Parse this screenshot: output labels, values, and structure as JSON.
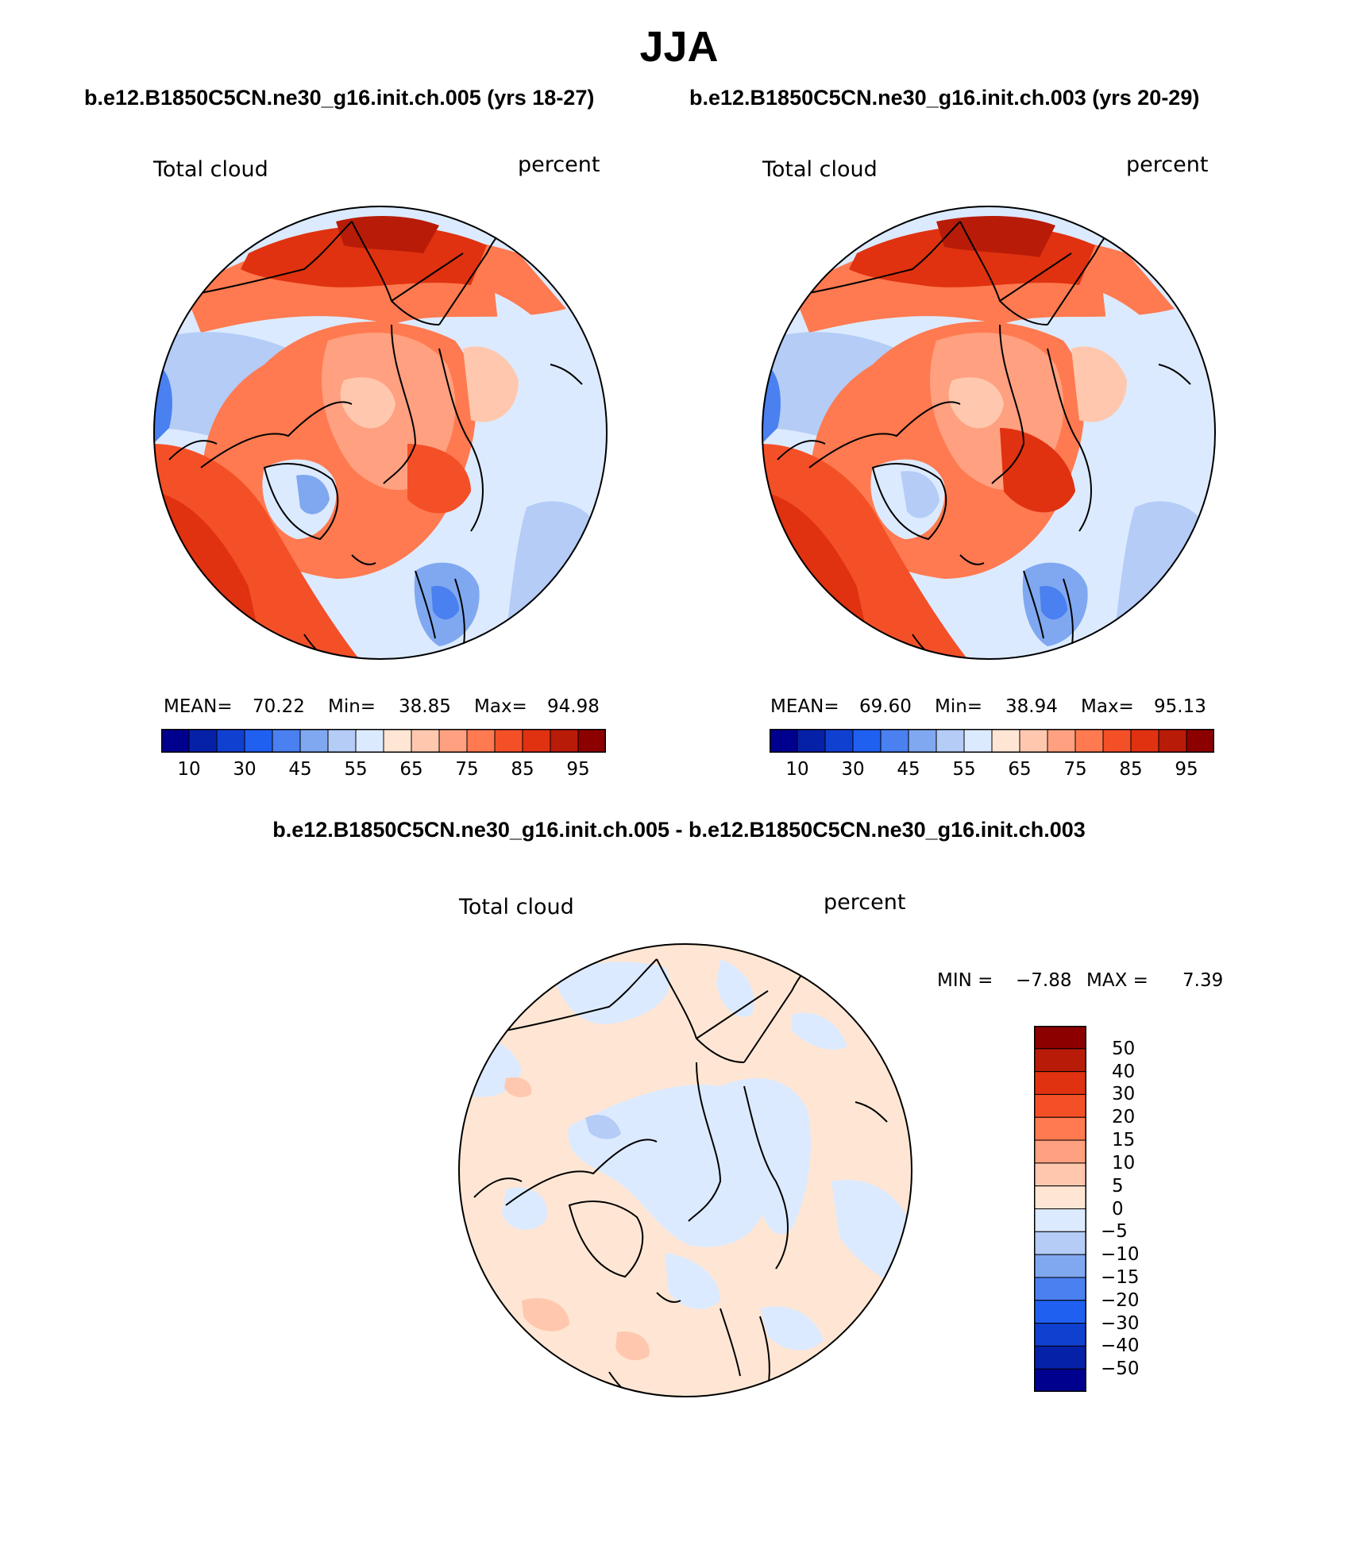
{
  "title": "JJA",
  "case_a_title": "b.e12.B1850C5CN.ne30_g16.init.ch.005 (yrs 18-27)",
  "case_b_title": "b.e12.B1850C5CN.ne30_g16.init.ch.003 (yrs 20-29)",
  "diff_title": "b.e12.B1850C5CN.ne30_g16.init.ch.005 - b.e12.B1850C5CN.ne30_g16.init.ch.003",
  "panels": [
    {
      "variable": "Total cloud",
      "units": "percent",
      "stats": {
        "mean_label": "MEAN=",
        "mean": "70.22",
        "min_label": "Min=",
        "min": "38.85",
        "max_label": "Max=",
        "max": "94.98"
      }
    },
    {
      "variable": "Total cloud",
      "units": "percent",
      "stats": {
        "mean_label": "MEAN=",
        "mean": "69.60",
        "min_label": "Min=",
        "min": "38.94",
        "max_label": "Max=",
        "max": "95.13"
      }
    },
    {
      "variable": "Total cloud",
      "units": "percent",
      "stats": {
        "min_label": "MIN =",
        "min": "−7.88",
        "max_label": "MAX =",
        "max": "7.39"
      }
    }
  ],
  "abs_colorbar": {
    "colors": [
      "#00008f",
      "#0521a8",
      "#1040d0",
      "#2060f0",
      "#4a80f0",
      "#80a8f0",
      "#b4ccf6",
      "#dceaff",
      "#ffe6d4",
      "#ffc8ae",
      "#ffa080",
      "#ff7a50",
      "#f45028",
      "#e03210",
      "#b81c08",
      "#8c0000"
    ],
    "tick_labels": [
      "10",
      "30",
      "45",
      "55",
      "65",
      "75",
      "85",
      "95"
    ]
  },
  "diff_colorbar": {
    "colors": [
      "#8c0000",
      "#b81c08",
      "#e03210",
      "#f45028",
      "#ff7a50",
      "#ffa080",
      "#ffc8ae",
      "#ffe6d4",
      "#dceaff",
      "#b4ccf6",
      "#80a8f0",
      "#4a80f0",
      "#2060f0",
      "#1040d0",
      "#0521a8",
      "#00008f"
    ],
    "tick_labels": [
      "50",
      "40",
      "30",
      "20",
      "15",
      "10",
      "5",
      "0",
      "−5",
      "−10",
      "−15",
      "−20",
      "−30",
      "−40",
      "−50"
    ]
  }
}
